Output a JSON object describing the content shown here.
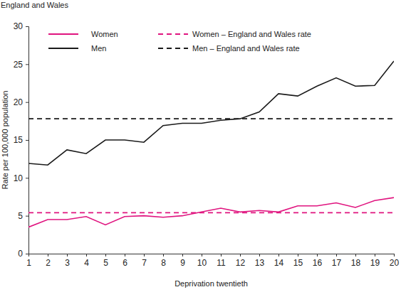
{
  "chart_data": {
    "type": "line",
    "title": "England and Wales",
    "x_label": "Deprivation twentieth",
    "y_label": "Rate per 100,000 population",
    "x": [
      1,
      2,
      3,
      4,
      5,
      6,
      7,
      8,
      9,
      10,
      11,
      12,
      13,
      14,
      15,
      16,
      17,
      18,
      19,
      20
    ],
    "xlim": [
      1,
      20
    ],
    "xticks": [
      1,
      2,
      3,
      4,
      5,
      6,
      7,
      8,
      9,
      10,
      11,
      12,
      13,
      14,
      15,
      16,
      17,
      18,
      19,
      20
    ],
    "ylim": [
      0,
      30
    ],
    "yticks": [
      0,
      5,
      10,
      15,
      20,
      25,
      30
    ],
    "grid": false,
    "legend": "top-left",
    "series": [
      {
        "name": "Women",
        "color": "#e0147f",
        "line_style": "solid",
        "values": [
          3.5,
          4.5,
          4.5,
          4.9,
          3.8,
          4.9,
          5.0,
          4.8,
          5.0,
          5.5,
          6.0,
          5.5,
          5.7,
          5.5,
          6.3,
          6.3,
          6.7,
          6.1,
          7.0,
          7.4
        ]
      },
      {
        "name": "Women – England and Wales rate",
        "color": "#e0147f",
        "line_style": "dashed",
        "values": [
          5.4,
          5.4,
          5.4,
          5.4,
          5.4,
          5.4,
          5.4,
          5.4,
          5.4,
          5.4,
          5.4,
          5.4,
          5.4,
          5.4,
          5.4,
          5.4,
          5.4,
          5.4,
          5.4,
          5.4
        ]
      },
      {
        "name": "Men",
        "color": "#1a1a1a",
        "line_style": "solid",
        "values": [
          11.9,
          11.7,
          13.7,
          13.2,
          15.0,
          15.0,
          14.7,
          16.9,
          17.2,
          17.2,
          17.6,
          17.8,
          18.7,
          21.1,
          20.8,
          22.1,
          23.2,
          22.1,
          22.2,
          25.4
        ]
      },
      {
        "name": "Men – England and Wales rate",
        "color": "#1a1a1a",
        "line_style": "dashed",
        "values": [
          17.8,
          17.8,
          17.8,
          17.8,
          17.8,
          17.8,
          17.8,
          17.8,
          17.8,
          17.8,
          17.8,
          17.8,
          17.8,
          17.8,
          17.8,
          17.8,
          17.8,
          17.8,
          17.8,
          17.8
        ]
      }
    ]
  }
}
